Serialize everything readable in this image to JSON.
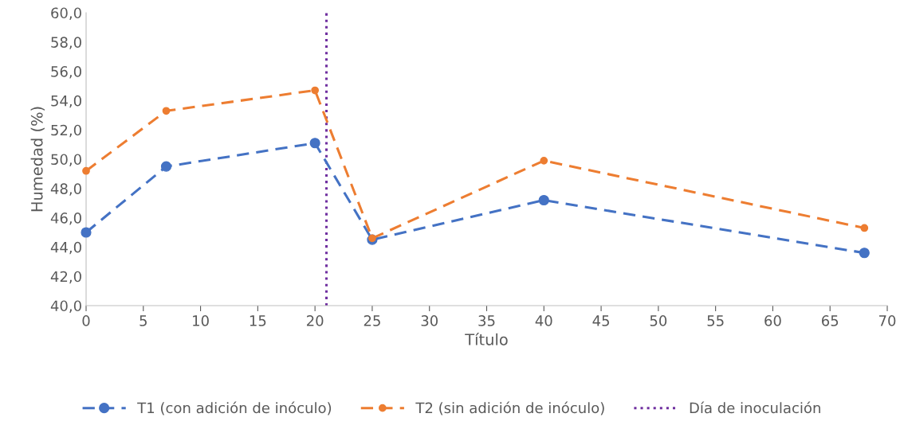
{
  "chart_data": {
    "type": "line",
    "xlabel": "Título",
    "ylabel": "Humedad (%)",
    "x": [
      0,
      7,
      20,
      25,
      40,
      68
    ],
    "series": [
      {
        "name": "T1 (con adición de inóculo)",
        "color": "#4472c4",
        "values": [
          45.0,
          49.5,
          51.1,
          44.5,
          47.2,
          43.6
        ]
      },
      {
        "name": "T2 (sin adición de inóculo)",
        "color": "#ed7d31",
        "values": [
          49.2,
          53.3,
          54.7,
          44.6,
          49.9,
          45.3
        ]
      }
    ],
    "xlim": [
      0,
      70
    ],
    "xticks": [
      0,
      5,
      10,
      15,
      20,
      25,
      30,
      35,
      40,
      45,
      50,
      55,
      60,
      65,
      70
    ],
    "ylim": [
      40,
      60
    ],
    "yticks": [
      {
        "value": 40,
        "label": "40,0"
      },
      {
        "value": 42,
        "label": "42,0"
      },
      {
        "value": 44,
        "label": "44,0"
      },
      {
        "value": 46,
        "label": "46,0"
      },
      {
        "value": 48,
        "label": "48,0"
      },
      {
        "value": 50,
        "label": "50,0"
      },
      {
        "value": 52,
        "label": "52,0"
      },
      {
        "value": 54,
        "label": "54,0"
      },
      {
        "value": 56,
        "label": "56,0"
      },
      {
        "value": 58,
        "label": "58,0"
      },
      {
        "value": 60,
        "label": "60,0"
      }
    ],
    "ref_lines": [
      {
        "axis": "x",
        "value": 21,
        "label": "Día de inoculación",
        "color": "#7030a0",
        "line_style": "dotted"
      }
    ],
    "grid": false,
    "legend": "bottom",
    "marker": "circle",
    "line_style": "dashed"
  }
}
